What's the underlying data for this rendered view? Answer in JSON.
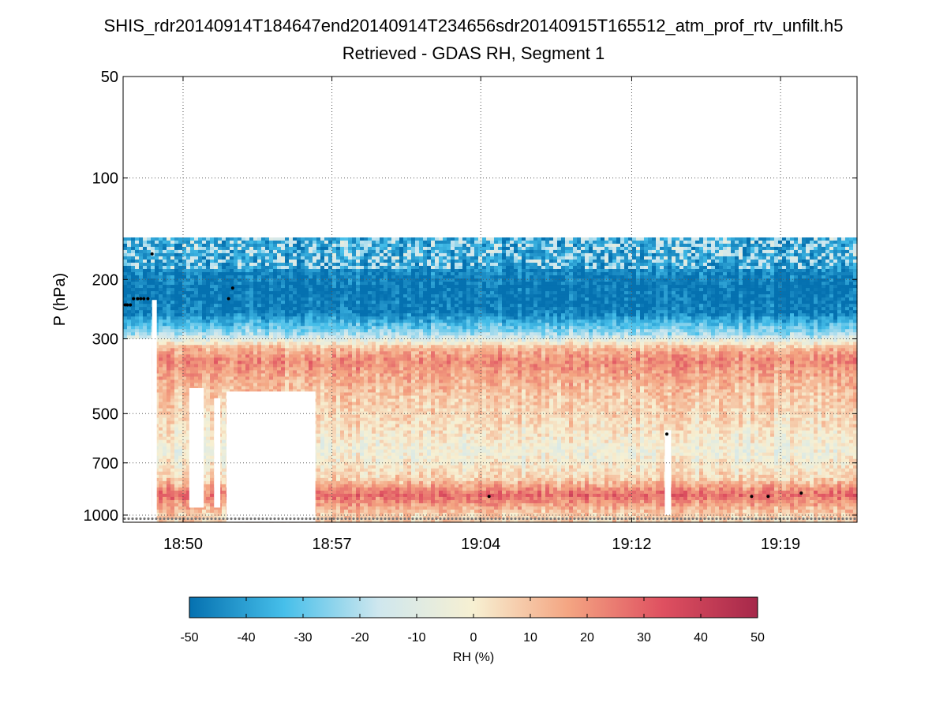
{
  "chart_data": {
    "type": "heatmap",
    "title_lines": [
      "SHIS_rdr20140914T184647end20140914T234656sdr20140915T165512_atm_prof_rtv_unfilt.h5",
      "Retrieved - GDAS RH, Segment 1"
    ],
    "ylabel": "P (hPa)",
    "y_scale": "log",
    "y_range": [
      50,
      1050
    ],
    "y_ticks": [
      50,
      100,
      200,
      300,
      500,
      700,
      1000
    ],
    "y_tick_labels": [
      "50",
      "100",
      "200",
      "300",
      "500",
      "700",
      "1000"
    ],
    "x_range_minutes": [
      0,
      35.5
    ],
    "x_ticks_minutes": [
      2.9,
      10.1,
      17.3,
      24.6,
      31.8
    ],
    "x_tick_labels": [
      "18:50",
      "18:57",
      "19:04",
      "19:12",
      "19:19"
    ],
    "grid": true,
    "data_top_pressure": 150,
    "colorbar": {
      "min": -50,
      "max": 50,
      "ticks": [
        -50,
        -40,
        -30,
        -20,
        -10,
        0,
        10,
        20,
        30,
        40,
        50
      ],
      "tick_labels": [
        "-50",
        "-40",
        "-30",
        "-20",
        "-10",
        "0",
        "10",
        "20",
        "30",
        "40",
        "50"
      ],
      "label": "RH (%)",
      "colormap_stops": [
        "#0571b0",
        "#46bfea",
        "#cfe7ee",
        "#f7f0d2",
        "#f4a582",
        "#df5060",
        "#a6284a"
      ]
    },
    "profile_levels": [
      {
        "pressure": 175,
        "rh_diff": -42
      },
      {
        "pressure": 210,
        "rh_diff": -50
      },
      {
        "pressure": 250,
        "rh_diff": -48
      },
      {
        "pressure": 290,
        "rh_diff": -22
      },
      {
        "pressure": 320,
        "rh_diff": 12
      },
      {
        "pressure": 350,
        "rh_diff": 22
      },
      {
        "pressure": 380,
        "rh_diff": 16
      },
      {
        "pressure": 450,
        "rh_diff": 8
      },
      {
        "pressure": 550,
        "rh_diff": 3
      },
      {
        "pressure": 650,
        "rh_diff": -4
      },
      {
        "pressure": 780,
        "rh_diff": 6
      },
      {
        "pressure": 870,
        "rh_diff": 28
      },
      {
        "pressure": 950,
        "rh_diff": 14
      },
      {
        "pressure": 1000,
        "rh_diff": 6
      }
    ],
    "missing_regions": [
      {
        "t_start": 0,
        "t_end": 1.4,
        "p_top": 300,
        "p_bottom": 1050
      },
      {
        "t_start": 1.4,
        "t_end": 1.4,
        "p_top": 230,
        "p_bottom": 1050
      },
      {
        "t_start": 3.2,
        "t_end": 3.9,
        "p_top": 420,
        "p_bottom": 950
      },
      {
        "t_start": 4.4,
        "t_end": 4.7,
        "p_top": 450,
        "p_bottom": 950
      },
      {
        "t_start": 5.0,
        "t_end": 9.3,
        "p_top": 430,
        "p_bottom": 1050
      },
      {
        "t_start": 26.2,
        "t_end": 26.5,
        "p_top": 560,
        "p_bottom": 1000
      }
    ],
    "black_marker_points": [
      {
        "t": 0.1,
        "p": 238
      },
      {
        "t": 0.2,
        "p": 238
      },
      {
        "t": 0.35,
        "p": 238
      },
      {
        "t": 0.5,
        "p": 228
      },
      {
        "t": 0.7,
        "p": 228
      },
      {
        "t": 0.85,
        "p": 228
      },
      {
        "t": 1.0,
        "p": 228
      },
      {
        "t": 1.2,
        "p": 228
      },
      {
        "t": 1.4,
        "p": 168
      },
      {
        "t": 5.1,
        "p": 228
      },
      {
        "t": 5.3,
        "p": 212
      },
      {
        "t": 17.7,
        "p": 880
      },
      {
        "t": 26.3,
        "p": 575
      },
      {
        "t": 30.4,
        "p": 880
      },
      {
        "t": 31.2,
        "p": 880
      },
      {
        "t": 32.8,
        "p": 860
      }
    ],
    "surface_marker_pressure": 1025
  }
}
